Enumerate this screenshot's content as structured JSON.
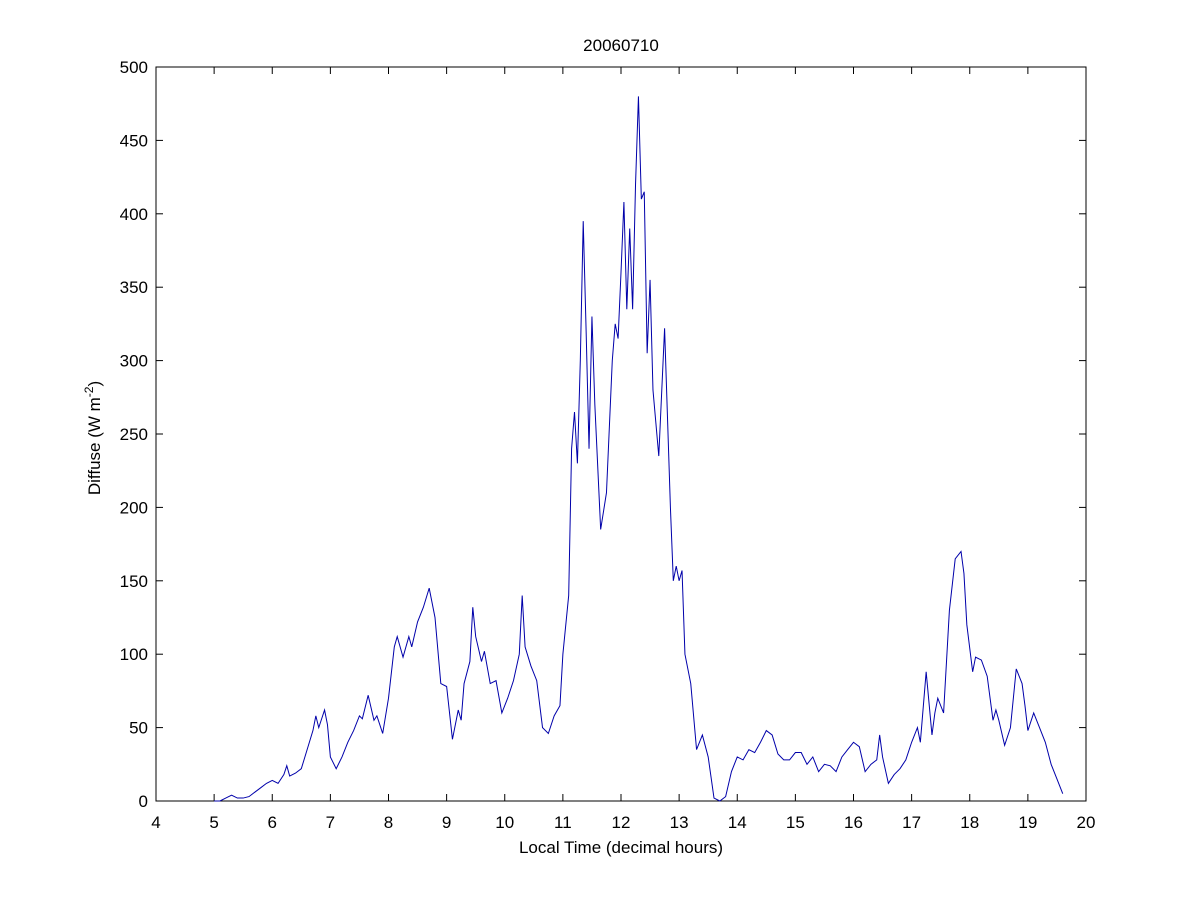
{
  "chart_data": {
    "type": "line",
    "title": "20060710",
    "xlabel": "Local Time (decimal hours)",
    "ylabel": {
      "text": "Diffuse (W m",
      "sup": "-2",
      "end": ")"
    },
    "xlim": [
      4,
      20
    ],
    "xticks": [
      4,
      5,
      6,
      7,
      8,
      9,
      10,
      11,
      12,
      13,
      14,
      15,
      16,
      17,
      18,
      19,
      20
    ],
    "ylim": [
      0,
      500
    ],
    "yticks": [
      0,
      50,
      100,
      150,
      200,
      250,
      300,
      350,
      400,
      450,
      500
    ],
    "grid": false,
    "series": [
      {
        "color": "#0000aa",
        "x": [
          5.0,
          5.1,
          5.2,
          5.3,
          5.4,
          5.5,
          5.6,
          5.7,
          5.8,
          5.9,
          6.0,
          6.1,
          6.2,
          6.25,
          6.3,
          6.4,
          6.5,
          6.6,
          6.7,
          6.75,
          6.8,
          6.9,
          6.95,
          7.0,
          7.1,
          7.2,
          7.3,
          7.4,
          7.5,
          7.55,
          7.65,
          7.75,
          7.8,
          7.9,
          8.0,
          8.1,
          8.15,
          8.25,
          8.35,
          8.4,
          8.5,
          8.6,
          8.7,
          8.8,
          8.9,
          9.0,
          9.1,
          9.2,
          9.25,
          9.3,
          9.4,
          9.45,
          9.5,
          9.6,
          9.65,
          9.75,
          9.85,
          9.95,
          10.05,
          10.15,
          10.25,
          10.3,
          10.35,
          10.45,
          10.55,
          10.65,
          10.75,
          10.85,
          10.95,
          11.0,
          11.1,
          11.15,
          11.2,
          11.25,
          11.3,
          11.35,
          11.4,
          11.45,
          11.5,
          11.55,
          11.65,
          11.75,
          11.85,
          11.9,
          11.95,
          12.0,
          12.05,
          12.1,
          12.15,
          12.2,
          12.25,
          12.3,
          12.35,
          12.4,
          12.45,
          12.5,
          12.55,
          12.65,
          12.75,
          12.85,
          12.9,
          12.95,
          13.0,
          13.05,
          13.1,
          13.2,
          13.3,
          13.4,
          13.5,
          13.6,
          13.7,
          13.8,
          13.9,
          14.0,
          14.1,
          14.2,
          14.3,
          14.4,
          14.5,
          14.6,
          14.7,
          14.8,
          14.9,
          15.0,
          15.1,
          15.2,
          15.3,
          15.4,
          15.5,
          15.6,
          15.7,
          15.8,
          15.9,
          16.0,
          16.1,
          16.2,
          16.3,
          16.4,
          16.45,
          16.5,
          16.6,
          16.7,
          16.8,
          16.9,
          17.0,
          17.1,
          17.15,
          17.25,
          17.35,
          17.4,
          17.45,
          17.55,
          17.65,
          17.75,
          17.85,
          17.9,
          17.95,
          18.05,
          18.1,
          18.2,
          18.3,
          18.4,
          18.45,
          18.5,
          18.6,
          18.7,
          18.8,
          18.9,
          18.95,
          19.0,
          19.1,
          19.2,
          19.3,
          19.4,
          19.5,
          19.6
        ],
        "values": [
          0,
          0,
          2,
          4,
          2,
          2,
          3,
          6,
          9,
          12,
          14,
          12,
          18,
          24,
          17,
          19,
          22,
          35,
          48,
          58,
          50,
          62,
          52,
          30,
          22,
          30,
          40,
          48,
          58,
          56,
          72,
          55,
          58,
          46,
          70,
          105,
          112,
          98,
          112,
          105,
          122,
          132,
          145,
          125,
          80,
          78,
          42,
          62,
          55,
          80,
          95,
          132,
          112,
          95,
          102,
          80,
          82,
          60,
          70,
          82,
          100,
          140,
          105,
          92,
          82,
          50,
          46,
          58,
          65,
          100,
          140,
          240,
          265,
          230,
          300,
          395,
          320,
          240,
          330,
          270,
          185,
          210,
          300,
          325,
          315,
          360,
          408,
          335,
          390,
          335,
          420,
          480,
          410,
          415,
          305,
          355,
          280,
          235,
          322,
          200,
          150,
          160,
          150,
          157,
          100,
          80,
          35,
          45,
          30,
          2,
          0,
          3,
          20,
          30,
          28,
          35,
          33,
          40,
          48,
          45,
          32,
          28,
          28,
          33,
          33,
          25,
          30,
          20,
          25,
          24,
          20,
          30,
          35,
          40,
          37,
          20,
          25,
          28,
          45,
          30,
          12,
          18,
          22,
          28,
          40,
          50,
          40,
          88,
          45,
          60,
          70,
          60,
          130,
          165,
          170,
          155,
          120,
          88,
          98,
          96,
          85,
          55,
          62,
          55,
          38,
          50,
          90,
          80,
          65,
          48,
          60,
          50,
          40,
          25,
          15,
          5
        ]
      }
    ]
  }
}
